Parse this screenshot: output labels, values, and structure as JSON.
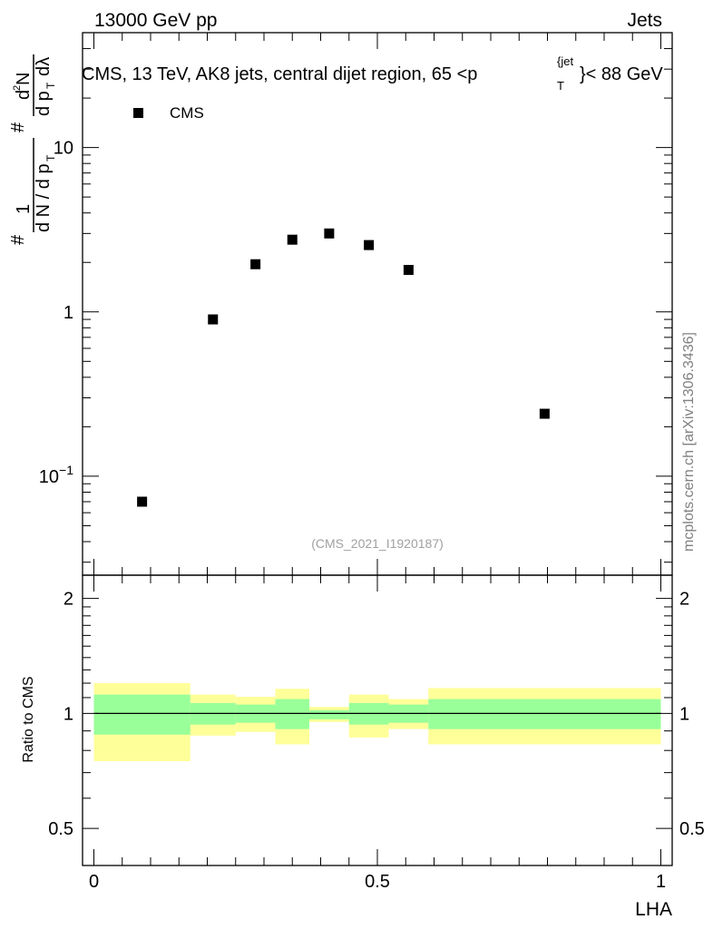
{
  "header": {
    "left": "13000 GeV pp",
    "right": "Jets"
  },
  "upper_panel": {
    "title": "CMS, 13 TeV, AK8 jets, central dijet region, 65 <p",
    "title_sup": "{jet",
    "title_sub": "T",
    "title_end": "}< 88 GeV",
    "ylabel": "# (1 / (d N / d pT)) (# d²N / d pT dλ)",
    "legend_label": "CMS",
    "watermark": "(CMS_2021_I1920187)",
    "side_label": "mcplots.cern.ch [arXiv:1306.3436]"
  },
  "ratio_panel": {
    "ylabel": "Ratio to CMS",
    "xlabel": "LHA"
  },
  "chart_data": [
    {
      "type": "scatter",
      "title": "CMS, 13 TeV, AK8 jets, central dijet region, 65 <p_T^{jet}< 88 GeV",
      "xlim": [
        -0.02,
        1.02
      ],
      "ylim": [
        0.025,
        50
      ],
      "yscale": "log",
      "ytick_labels": [
        "10^-1",
        "1",
        "10"
      ],
      "ytick_values": [
        0.1,
        1,
        10
      ],
      "legend": "top-left",
      "series": [
        {
          "name": "CMS",
          "marker": "square",
          "color": "#000000",
          "x": [
            0.085,
            0.21,
            0.285,
            0.35,
            0.415,
            0.485,
            0.555,
            0.795
          ],
          "y": [
            0.07,
            0.9,
            1.95,
            2.75,
            3.0,
            2.55,
            1.8,
            0.24
          ]
        }
      ]
    },
    {
      "type": "area",
      "xlabel": "LHA",
      "ylabel": "Ratio to CMS",
      "xlim": [
        -0.02,
        1.02
      ],
      "ylim": [
        0.4,
        2.3
      ],
      "yscale": "log",
      "xtick_labels": [
        "0",
        "0.5",
        "1"
      ],
      "xtick_values": [
        0,
        0.5,
        1
      ],
      "ytick_labels": [
        "0.5",
        "1",
        "2"
      ],
      "ytick_values": [
        0.5,
        1,
        2
      ],
      "reference_line": 1,
      "bins": [
        {
          "xlow": 0.0,
          "xhigh": 0.17,
          "inner": [
            0.88,
            1.12
          ],
          "outer": [
            0.75,
            1.2
          ]
        },
        {
          "xlow": 0.17,
          "xhigh": 0.25,
          "inner": [
            0.935,
            1.065
          ],
          "outer": [
            0.875,
            1.12
          ]
        },
        {
          "xlow": 0.25,
          "xhigh": 0.32,
          "inner": [
            0.945,
            1.055
          ],
          "outer": [
            0.895,
            1.105
          ]
        },
        {
          "xlow": 0.32,
          "xhigh": 0.38,
          "inner": [
            0.91,
            1.09
          ],
          "outer": [
            0.83,
            1.16
          ]
        },
        {
          "xlow": 0.38,
          "xhigh": 0.45,
          "inner": [
            0.965,
            1.02
          ],
          "outer": [
            0.95,
            1.04
          ]
        },
        {
          "xlow": 0.45,
          "xhigh": 0.52,
          "inner": [
            0.935,
            1.065
          ],
          "outer": [
            0.865,
            1.12
          ]
        },
        {
          "xlow": 0.52,
          "xhigh": 0.59,
          "inner": [
            0.945,
            1.055
          ],
          "outer": [
            0.91,
            1.09
          ]
        },
        {
          "xlow": 0.59,
          "xhigh": 1.0,
          "inner": [
            0.91,
            1.09
          ],
          "outer": [
            0.83,
            1.165
          ]
        }
      ],
      "colors": {
        "inner": "#99ff99",
        "outer": "#ffff99"
      }
    }
  ]
}
